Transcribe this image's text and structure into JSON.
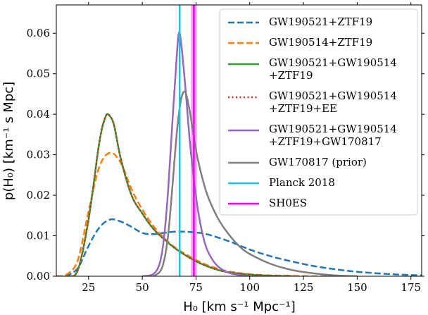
{
  "chart_data": {
    "type": "line",
    "xlabel": "H₀ [km s⁻¹ Mpc⁻¹]",
    "ylabel": "p(H₀) [km⁻¹ s Mpc]",
    "xlim": [
      10,
      180
    ],
    "ylim": [
      0,
      0.067
    ],
    "x_ticks": [
      25,
      50,
      75,
      100,
      125,
      150,
      175
    ],
    "y_ticks": [
      0.0,
      0.01,
      0.02,
      0.03,
      0.04,
      0.05,
      0.06
    ],
    "x_tick_labels": [
      "25",
      "50",
      "75",
      "100",
      "125",
      "150",
      "175"
    ],
    "y_tick_labels": [
      "0.00",
      "0.01",
      "0.02",
      "0.03",
      "0.04",
      "0.05",
      "0.06"
    ],
    "legend_position": "top-right",
    "series": [
      {
        "name": "GW190521+ZTF19",
        "color": "#1f77b4",
        "dash": "dashed",
        "x": [
          10,
          15,
          20,
          25,
          30,
          35,
          40,
          45,
          50,
          55,
          60,
          65,
          70,
          75,
          80,
          90,
          100,
          110,
          120,
          130,
          140,
          150,
          160,
          170,
          180
        ],
        "y": [
          0.0,
          0.0002,
          0.002,
          0.0075,
          0.012,
          0.014,
          0.0135,
          0.0122,
          0.0107,
          0.0104,
          0.0107,
          0.011,
          0.011,
          0.0108,
          0.0104,
          0.0087,
          0.0066,
          0.0049,
          0.0036,
          0.0025,
          0.0017,
          0.0011,
          0.0007,
          0.0004,
          0.0002
        ]
      },
      {
        "name": "GW190514+ZTF19",
        "color": "#ff7f0e",
        "dash": "dashed",
        "x": [
          10,
          15,
          20,
          25,
          30,
          35,
          40,
          45,
          50,
          55,
          60,
          65,
          70,
          75,
          80,
          85,
          90,
          100,
          110,
          120,
          130,
          140,
          150
        ],
        "y": [
          0.0,
          0.0005,
          0.004,
          0.016,
          0.027,
          0.0305,
          0.028,
          0.0215,
          0.0165,
          0.0125,
          0.0095,
          0.0072,
          0.0055,
          0.004,
          0.0028,
          0.0019,
          0.0012,
          0.0005,
          0.0002,
          0.0001,
          0.0,
          0.0,
          0.0
        ]
      },
      {
        "name": "GW190521+GW190514\n+ZTF19",
        "color": "#2ca02c",
        "dash": "solid",
        "x": [
          10,
          15,
          20,
          25,
          30,
          33,
          35,
          37,
          40,
          45,
          50,
          55,
          60,
          65,
          70,
          75,
          80,
          85,
          90,
          100,
          110,
          120
        ],
        "y": [
          0.0,
          0.0,
          0.0015,
          0.014,
          0.033,
          0.0395,
          0.0395,
          0.037,
          0.029,
          0.02,
          0.0155,
          0.0118,
          0.0092,
          0.007,
          0.0052,
          0.0037,
          0.0025,
          0.0016,
          0.001,
          0.0004,
          0.0001,
          0.0
        ]
      },
      {
        "name": "GW190521+GW190514\n+ZTF19+EE",
        "color": "#d62728",
        "dash": "dotted",
        "x": [
          10,
          15,
          20,
          25,
          30,
          33,
          35,
          37,
          40,
          45,
          50,
          55,
          60,
          65,
          70,
          75,
          80,
          85,
          90,
          100,
          110,
          120
        ],
        "y": [
          0.0,
          0.0,
          0.0015,
          0.014,
          0.033,
          0.0395,
          0.0395,
          0.037,
          0.029,
          0.02,
          0.0155,
          0.0118,
          0.0092,
          0.007,
          0.0052,
          0.0037,
          0.0025,
          0.0016,
          0.001,
          0.0004,
          0.0001,
          0.0
        ]
      },
      {
        "name": "GW190521+GW190514\n+ZTF19+GW170817",
        "color": "#9467bd",
        "dash": "solid",
        "x": [
          50,
          55,
          58,
          60,
          62,
          64,
          66,
          67,
          68,
          70,
          72,
          74,
          76,
          78,
          80,
          83,
          86,
          90,
          95,
          100
        ],
        "y": [
          0.0,
          0.0005,
          0.003,
          0.009,
          0.021,
          0.038,
          0.054,
          0.06,
          0.058,
          0.047,
          0.034,
          0.024,
          0.016,
          0.0105,
          0.0068,
          0.0038,
          0.0021,
          0.0009,
          0.0003,
          0.0
        ]
      },
      {
        "name": "GW170817 (prior)",
        "color": "#7f7f7f",
        "dash": "solid",
        "x": [
          55,
          58,
          60,
          62,
          64,
          66,
          68,
          70,
          72,
          74,
          76,
          80,
          85,
          90,
          95,
          100,
          110,
          120,
          130,
          140,
          150
        ],
        "y": [
          0.0,
          0.001,
          0.0035,
          0.01,
          0.022,
          0.035,
          0.0435,
          0.0455,
          0.041,
          0.0345,
          0.0285,
          0.0205,
          0.0145,
          0.0105,
          0.0075,
          0.0055,
          0.003,
          0.0015,
          0.0007,
          0.0002,
          0.0
        ]
      }
    ],
    "vlines": [
      {
        "name": "Planck 2018",
        "color": "#19c3ee",
        "x": 67.4,
        "band": [
          67.0,
          67.8
        ]
      },
      {
        "name": "SH0ES",
        "color": "#f200f2",
        "x": 74.0,
        "band": [
          72.6,
          75.4
        ]
      }
    ]
  }
}
